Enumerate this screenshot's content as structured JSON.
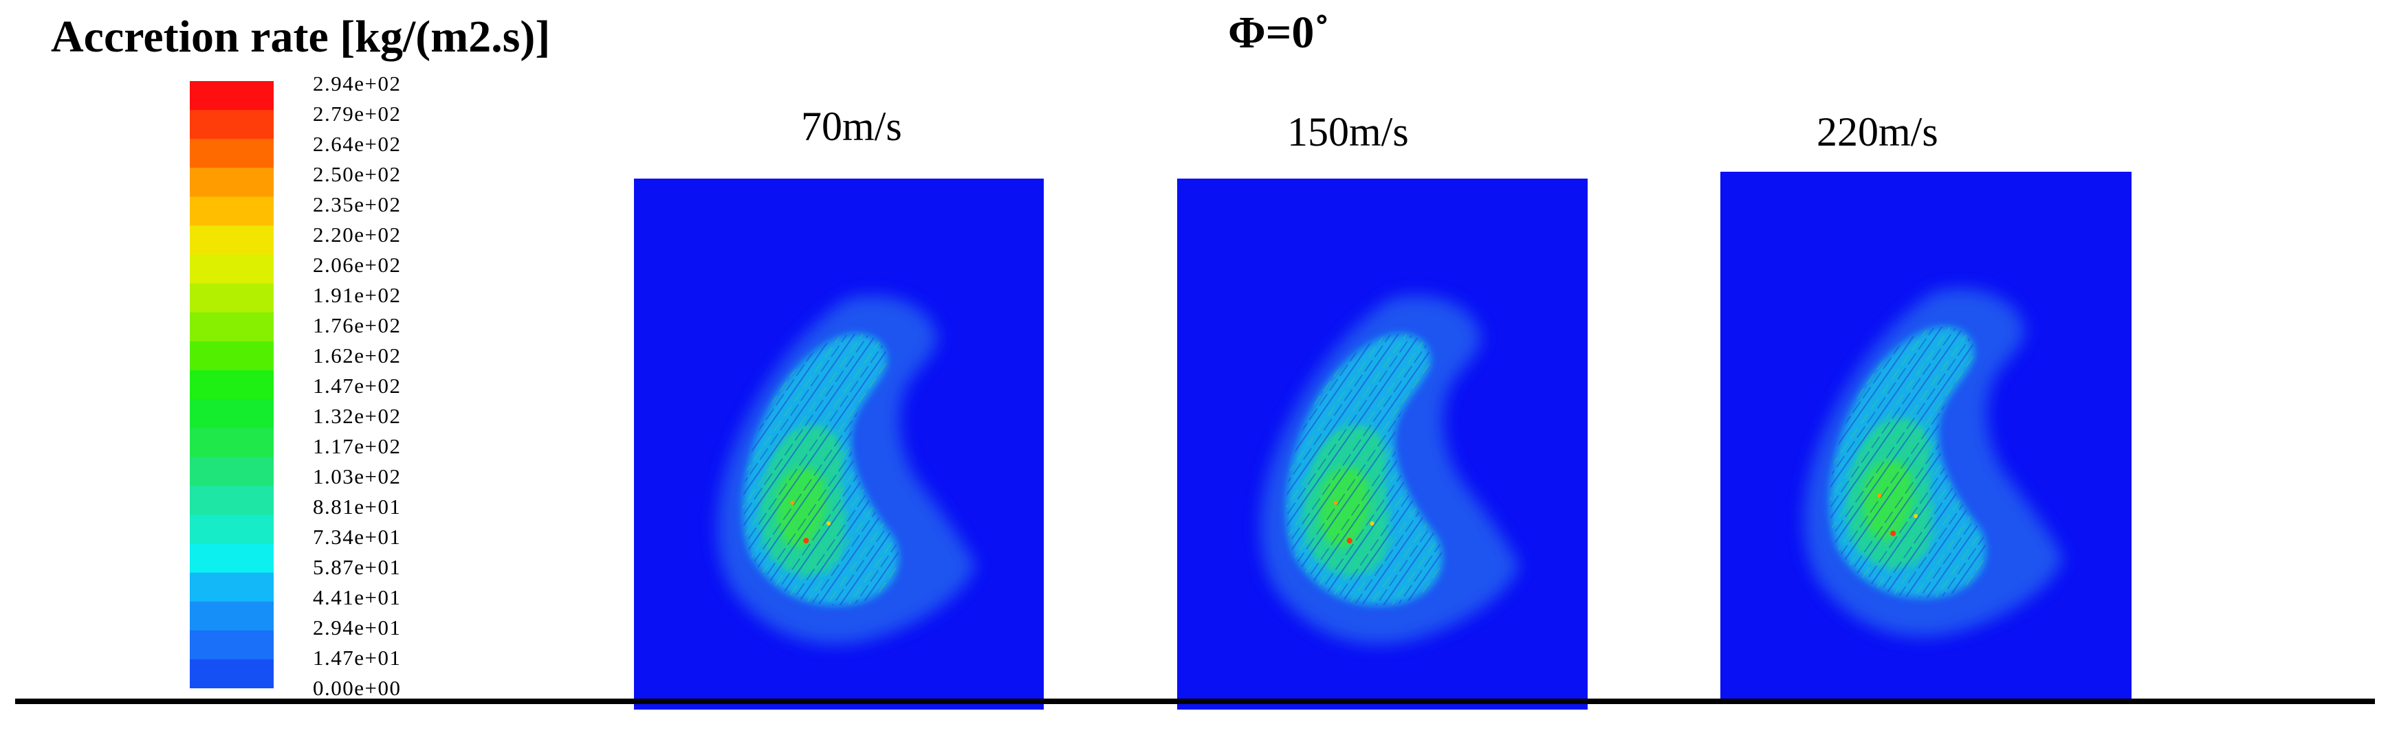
{
  "title": "Accretion rate [kg/(m2.s)]",
  "condition": "Φ=0˚",
  "colorbar": {
    "labels": [
      "2.94e+02",
      "2.79e+02",
      "2.64e+02",
      "2.50e+02",
      "2.35e+02",
      "2.20e+02",
      "2.06e+02",
      "1.91e+02",
      "1.76e+02",
      "1.62e+02",
      "1.47e+02",
      "1.32e+02",
      "1.17e+02",
      "1.03e+02",
      "8.81e+01",
      "7.34e+01",
      "5.87e+01",
      "4.41e+01",
      "2.94e+01",
      "1.47e+01",
      "0.00e+00"
    ],
    "colors": [
      "#ff0f0f",
      "#ff3d0a",
      "#ff6a00",
      "#ff9c00",
      "#ffbf00",
      "#f2e600",
      "#dcf000",
      "#b2f000",
      "#86f000",
      "#52f000",
      "#1ef014",
      "#14ec2e",
      "#1ee84a",
      "#1fe47a",
      "#1ee6a4",
      "#16ecc8",
      "#0cf0f0",
      "#12b8f8",
      "#1690f8",
      "#1a70f8",
      "#1450f4"
    ]
  },
  "panels": [
    {
      "label": "70m/s"
    },
    {
      "label": "150m/s"
    },
    {
      "label": "220m/s"
    }
  ]
}
